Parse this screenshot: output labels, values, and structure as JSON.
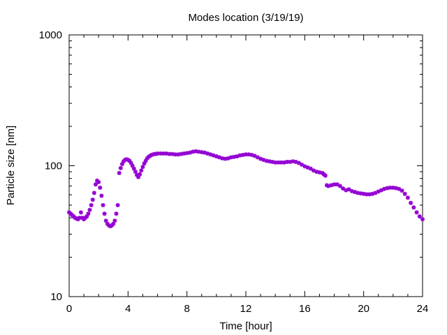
{
  "chart_data": {
    "type": "scatter",
    "title": "Modes location (3/19/19)",
    "xlabel": "Time [hour]",
    "ylabel": "Particle size [nm]",
    "xlim": [
      0,
      24
    ],
    "ylim": [
      10,
      1000
    ],
    "yscale": "log",
    "grid": false,
    "legend": "none",
    "marker_color": "#9400d3",
    "xticks": [
      0,
      4,
      8,
      12,
      16,
      20,
      24
    ],
    "xtick_labels": [
      "0",
      "4",
      "8",
      "12",
      "16",
      "20",
      "24"
    ],
    "yticks": [
      10,
      100,
      1000
    ],
    "ytick_labels": [
      "10",
      "100",
      "1000"
    ],
    "series": [
      {
        "points": [
          [
            0.0,
            44
          ],
          [
            0.1,
            43
          ],
          [
            0.2,
            42
          ],
          [
            0.3,
            41
          ],
          [
            0.4,
            40
          ],
          [
            0.5,
            39.5
          ],
          [
            0.6,
            39
          ],
          [
            0.7,
            40
          ],
          [
            0.8,
            44
          ],
          [
            0.9,
            40
          ],
          [
            1.0,
            39
          ],
          [
            1.1,
            40
          ],
          [
            1.2,
            41
          ],
          [
            1.3,
            43
          ],
          [
            1.4,
            46
          ],
          [
            1.5,
            50
          ],
          [
            1.6,
            55
          ],
          [
            1.7,
            62
          ],
          [
            1.8,
            72
          ],
          [
            1.9,
            77
          ],
          [
            2.0,
            75
          ],
          [
            2.1,
            68
          ],
          [
            2.2,
            59
          ],
          [
            2.3,
            50
          ],
          [
            2.4,
            43
          ],
          [
            2.5,
            38
          ],
          [
            2.6,
            36
          ],
          [
            2.7,
            35
          ],
          [
            2.8,
            34.5
          ],
          [
            2.9,
            35
          ],
          [
            3.0,
            36
          ],
          [
            3.1,
            38
          ],
          [
            3.2,
            43
          ],
          [
            3.3,
            50
          ],
          [
            3.4,
            88
          ],
          [
            3.5,
            96
          ],
          [
            3.6,
            103
          ],
          [
            3.7,
            108
          ],
          [
            3.8,
            111
          ],
          [
            3.9,
            112
          ],
          [
            4.0,
            111
          ],
          [
            4.1,
            109
          ],
          [
            4.2,
            105
          ],
          [
            4.3,
            100
          ],
          [
            4.4,
            95
          ],
          [
            4.5,
            90
          ],
          [
            4.6,
            85
          ],
          [
            4.7,
            82
          ],
          [
            4.8,
            86
          ],
          [
            4.9,
            92
          ],
          [
            5.0,
            98
          ],
          [
            5.1,
            104
          ],
          [
            5.2,
            109
          ],
          [
            5.3,
            114
          ],
          [
            5.4,
            117
          ],
          [
            5.5,
            119
          ],
          [
            5.6,
            121
          ],
          [
            5.7,
            122
          ],
          [
            5.8,
            123
          ],
          [
            5.9,
            123
          ],
          [
            6.0,
            124
          ],
          [
            6.2,
            124
          ],
          [
            6.4,
            124
          ],
          [
            6.6,
            124
          ],
          [
            6.8,
            123
          ],
          [
            7.0,
            123
          ],
          [
            7.2,
            122
          ],
          [
            7.4,
            122
          ],
          [
            7.6,
            123
          ],
          [
            7.8,
            124
          ],
          [
            8.0,
            125
          ],
          [
            8.2,
            126
          ],
          [
            8.4,
            128
          ],
          [
            8.6,
            129
          ],
          [
            8.8,
            128
          ],
          [
            9.0,
            127
          ],
          [
            9.2,
            126
          ],
          [
            9.4,
            124
          ],
          [
            9.6,
            122
          ],
          [
            9.8,
            120
          ],
          [
            10.0,
            118
          ],
          [
            10.2,
            116
          ],
          [
            10.4,
            114
          ],
          [
            10.6,
            113
          ],
          [
            10.8,
            114
          ],
          [
            11.0,
            116
          ],
          [
            11.2,
            117
          ],
          [
            11.4,
            118
          ],
          [
            11.6,
            120
          ],
          [
            11.8,
            121
          ],
          [
            12.0,
            122
          ],
          [
            12.2,
            122
          ],
          [
            12.4,
            121
          ],
          [
            12.6,
            119
          ],
          [
            12.8,
            116
          ],
          [
            13.0,
            113
          ],
          [
            13.2,
            111
          ],
          [
            13.4,
            109
          ],
          [
            13.6,
            108
          ],
          [
            13.8,
            107
          ],
          [
            14.0,
            106
          ],
          [
            14.2,
            106
          ],
          [
            14.4,
            106
          ],
          [
            14.6,
            106
          ],
          [
            14.8,
            107
          ],
          [
            15.0,
            107
          ],
          [
            15.2,
            108
          ],
          [
            15.4,
            107
          ],
          [
            15.6,
            105
          ],
          [
            15.8,
            102
          ],
          [
            16.0,
            99
          ],
          [
            16.2,
            97
          ],
          [
            16.4,
            95
          ],
          [
            16.6,
            92
          ],
          [
            16.8,
            90
          ],
          [
            17.0,
            89
          ],
          [
            17.2,
            88
          ],
          [
            17.3,
            86
          ],
          [
            17.4,
            84
          ],
          [
            17.5,
            71
          ],
          [
            17.6,
            70
          ],
          [
            17.8,
            71
          ],
          [
            18.0,
            72
          ],
          [
            18.2,
            72
          ],
          [
            18.4,
            70
          ],
          [
            18.6,
            67
          ],
          [
            18.8,
            65
          ],
          [
            19.0,
            66
          ],
          [
            19.2,
            64
          ],
          [
            19.4,
            63
          ],
          [
            19.6,
            62
          ],
          [
            19.8,
            61.5
          ],
          [
            20.0,
            61
          ],
          [
            20.2,
            60.5
          ],
          [
            20.4,
            60.5
          ],
          [
            20.6,
            61
          ],
          [
            20.8,
            62
          ],
          [
            21.0,
            63.5
          ],
          [
            21.2,
            65
          ],
          [
            21.4,
            66.5
          ],
          [
            21.6,
            67.5
          ],
          [
            21.8,
            68
          ],
          [
            22.0,
            68
          ],
          [
            22.2,
            67.5
          ],
          [
            22.4,
            66.5
          ],
          [
            22.6,
            64.5
          ],
          [
            22.8,
            61
          ],
          [
            23.0,
            57
          ],
          [
            23.2,
            52
          ],
          [
            23.4,
            48
          ],
          [
            23.6,
            44
          ],
          [
            23.8,
            41
          ],
          [
            24.0,
            39
          ]
        ]
      }
    ]
  }
}
